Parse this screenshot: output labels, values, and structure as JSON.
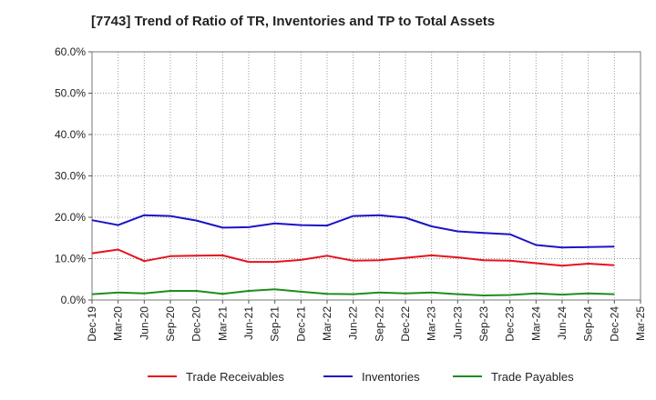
{
  "chart_data": {
    "type": "line",
    "title": "[7743]  Trend of Ratio of TR, Inventories and TP to Total Assets",
    "xlabel": "",
    "ylabel": "",
    "ylim": [
      0,
      60
    ],
    "y_ticks": [
      "0.0%",
      "10.0%",
      "20.0%",
      "30.0%",
      "40.0%",
      "50.0%",
      "60.0%"
    ],
    "x_tick_labels": [
      "Dec-19",
      "Mar-20",
      "Jun-20",
      "Sep-20",
      "Dec-20",
      "Mar-21",
      "Jun-21",
      "Sep-21",
      "Dec-21",
      "Mar-22",
      "Jun-22",
      "Sep-22",
      "Dec-22",
      "Mar-23",
      "Jun-23",
      "Sep-23",
      "Dec-23",
      "Mar-24",
      "Jun-24",
      "Sep-24",
      "Dec-24",
      "Mar-25"
    ],
    "categories": [
      "Dec-19",
      "Mar-20",
      "Jun-20",
      "Sep-20",
      "Dec-20",
      "Mar-21",
      "Jun-21",
      "Sep-21",
      "Dec-21",
      "Mar-22",
      "Jun-22",
      "Sep-22",
      "Dec-22",
      "Mar-23",
      "Jun-23",
      "Sep-23",
      "Dec-23",
      "Mar-24",
      "Jun-24",
      "Sep-24",
      "Dec-24"
    ],
    "grid": true,
    "legend_position": "bottom",
    "series": [
      {
        "name": "Trade Receivables",
        "color": "#e8121b",
        "values": [
          11.3,
          12.2,
          9.4,
          10.6,
          10.7,
          10.8,
          9.2,
          9.2,
          9.7,
          10.7,
          9.5,
          9.6,
          10.2,
          10.8,
          10.3,
          9.6,
          9.5,
          8.9,
          8.3,
          8.8,
          8.4
        ]
      },
      {
        "name": "Inventories",
        "color": "#1a14c8",
        "values": [
          19.3,
          18.1,
          20.5,
          20.3,
          19.2,
          17.5,
          17.6,
          18.5,
          18.1,
          18.0,
          20.3,
          20.5,
          19.9,
          17.8,
          16.6,
          16.2,
          15.9,
          13.3,
          12.7,
          12.8,
          12.9
        ]
      },
      {
        "name": "Trade Payables",
        "color": "#1f8c22",
        "values": [
          1.4,
          1.8,
          1.6,
          2.2,
          2.2,
          1.5,
          2.2,
          2.6,
          2.0,
          1.5,
          1.4,
          1.8,
          1.6,
          1.8,
          1.4,
          1.1,
          1.2,
          1.6,
          1.3,
          1.6,
          1.4
        ]
      }
    ]
  }
}
